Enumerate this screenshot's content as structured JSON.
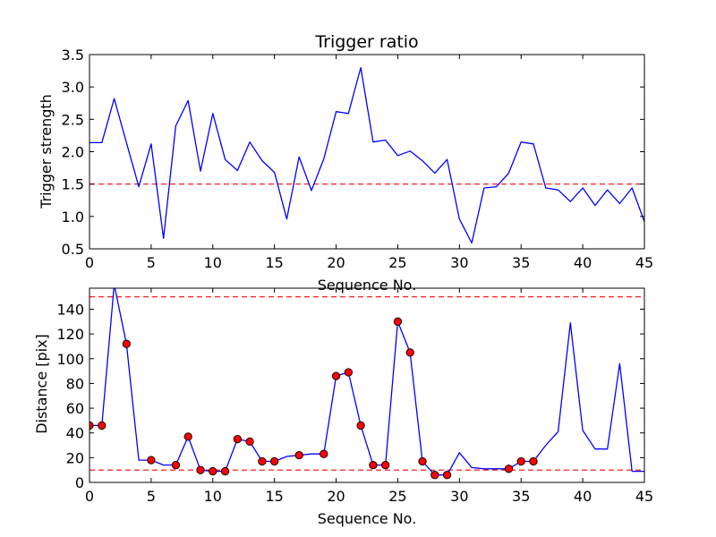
{
  "chart_data": [
    {
      "type": "line",
      "title": "Trigger ratio",
      "xlabel": "Sequence No.",
      "ylabel": "Trigger strength",
      "xlim": [
        0,
        45
      ],
      "ylim": [
        0.5,
        3.5
      ],
      "x_ticks": [
        "0",
        "5",
        "10",
        "15",
        "20",
        "25",
        "30",
        "35",
        "40",
        "45"
      ],
      "y_ticks": [
        "0.5",
        "1.0",
        "1.5",
        "2.0",
        "2.5",
        "3.0",
        "3.5"
      ],
      "grid": false,
      "series": [
        {
          "color": "#0000ff",
          "x": [
            0,
            1,
            2,
            3,
            4,
            5,
            6,
            7,
            8,
            9,
            10,
            11,
            12,
            13,
            14,
            15,
            16,
            17,
            18,
            19,
            20,
            21,
            22,
            23,
            24,
            25,
            26,
            27,
            28,
            29,
            30,
            31,
            32,
            33,
            34,
            35,
            36,
            37,
            38,
            39,
            40,
            41,
            42,
            43,
            44,
            45
          ],
          "values": [
            2.14,
            2.14,
            2.82,
            2.14,
            1.46,
            2.12,
            0.66,
            2.4,
            2.79,
            1.7,
            2.59,
            1.88,
            1.71,
            2.15,
            1.86,
            1.68,
            0.96,
            1.92,
            1.4,
            1.89,
            2.62,
            2.59,
            3.3,
            2.15,
            2.18,
            1.94,
            2.01,
            1.86,
            1.67,
            1.88,
            0.96,
            0.59,
            1.44,
            1.46,
            1.67,
            2.15,
            2.12,
            1.44,
            1.41,
            1.23,
            1.44,
            1.17,
            1.41,
            1.2,
            1.44,
            0.92
          ]
        }
      ],
      "threshold_lines": [
        {
          "y": 1.5,
          "color": "#ff0000",
          "style": "dashed"
        }
      ]
    },
    {
      "type": "line",
      "title": "",
      "xlabel": "Sequence No.",
      "ylabel": "Distance [pix]",
      "xlim": [
        0,
        45
      ],
      "ylim": [
        0,
        157
      ],
      "x_ticks": [
        "0",
        "5",
        "10",
        "15",
        "20",
        "25",
        "30",
        "35",
        "40",
        "45"
      ],
      "y_ticks": [
        "0",
        "20",
        "40",
        "60",
        "80",
        "100",
        "120",
        "140"
      ],
      "grid": false,
      "series": [
        {
          "color": "#0000ff",
          "x": [
            0,
            1,
            2,
            3,
            4,
            5,
            6,
            7,
            8,
            9,
            10,
            11,
            12,
            13,
            14,
            15,
            16,
            17,
            18,
            19,
            20,
            21,
            22,
            23,
            24,
            25,
            26,
            27,
            28,
            29,
            30,
            31,
            32,
            33,
            34,
            35,
            36,
            37,
            38,
            39,
            40,
            41,
            42,
            43,
            44,
            45
          ],
          "values": [
            46,
            46,
            160,
            112,
            18,
            18,
            14,
            14,
            37,
            10,
            9,
            9,
            35,
            33,
            17,
            17,
            21,
            22,
            23,
            23,
            86,
            89,
            46,
            14,
            14,
            130,
            105,
            17,
            6,
            6,
            24,
            12,
            11,
            11,
            11,
            17,
            17,
            30,
            41,
            129,
            42,
            27,
            27,
            96,
            9,
            9
          ]
        }
      ],
      "markers": {
        "color": "#ff0000",
        "points": [
          [
            0,
            46
          ],
          [
            1,
            46
          ],
          [
            3,
            112
          ],
          [
            5,
            18
          ],
          [
            7,
            14
          ],
          [
            8,
            37
          ],
          [
            9,
            10
          ],
          [
            10,
            9
          ],
          [
            11,
            9
          ],
          [
            12,
            35
          ],
          [
            13,
            33
          ],
          [
            14,
            17
          ],
          [
            15,
            17
          ],
          [
            17,
            22
          ],
          [
            19,
            23
          ],
          [
            20,
            86
          ],
          [
            21,
            89
          ],
          [
            22,
            46
          ],
          [
            23,
            14
          ],
          [
            24,
            14
          ],
          [
            25,
            130
          ],
          [
            26,
            105
          ],
          [
            27,
            17
          ],
          [
            28,
            6
          ],
          [
            29,
            6
          ],
          [
            34,
            11
          ],
          [
            35,
            17
          ],
          [
            36,
            17
          ]
        ]
      },
      "threshold_lines": [
        {
          "y": 150,
          "color": "#ff0000",
          "style": "dashed"
        },
        {
          "y": 10,
          "color": "#ff0000",
          "style": "dashed"
        }
      ]
    }
  ]
}
